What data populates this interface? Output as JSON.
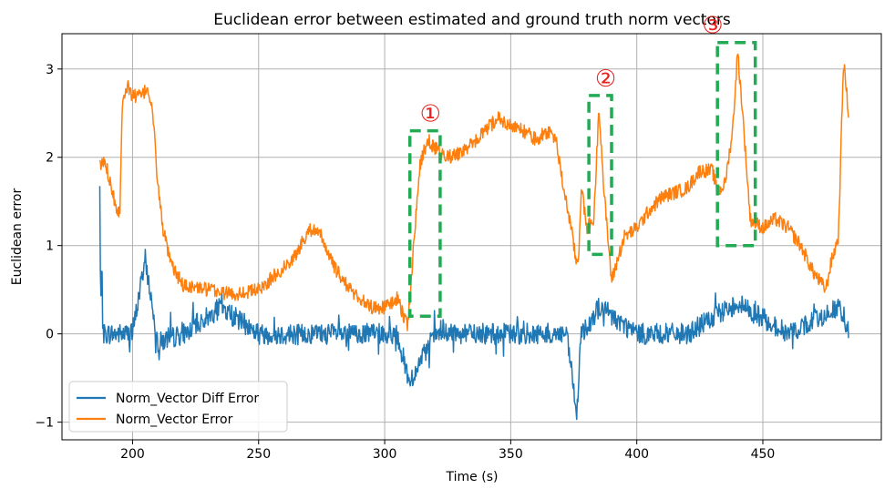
{
  "chart_data": {
    "type": "line",
    "title": "Euclidean error between estimated and ground truth norm vectors",
    "xlabel": "Time (s)",
    "ylabel": "Euclidean error",
    "xlim": [
      172,
      497
    ],
    "ylim": [
      -1.2,
      3.4
    ],
    "xticks": [
      200,
      250,
      300,
      350,
      400,
      450
    ],
    "yticks": [
      -1,
      0,
      1,
      2,
      3
    ],
    "ytick_labels": [
      "−1",
      "0",
      "1",
      "2",
      "3"
    ],
    "grid": true,
    "legend_position": "lower-left",
    "series": [
      {
        "name": "Norm_Vector Diff Error",
        "color": "#1f77b4",
        "noise_amplitude": 0.12,
        "x": [
          187,
          187.3,
          187.8,
          188.5,
          200,
          205,
          210,
          220,
          235,
          250,
          270,
          290,
          305,
          308,
          310,
          320,
          340,
          360,
          372,
          375,
          376,
          378,
          385,
          400,
          420,
          440,
          460,
          480,
          484
        ],
        "y": [
          1.65,
          0.3,
          0.7,
          0.0,
          0.0,
          0.85,
          -0.1,
          0.0,
          0.3,
          0.0,
          0.0,
          0.0,
          0.0,
          -0.35,
          -0.55,
          0.0,
          0.0,
          0.0,
          0.0,
          -0.6,
          -1.0,
          0.0,
          0.3,
          0.0,
          0.0,
          0.35,
          0.0,
          0.3,
          0.0
        ]
      },
      {
        "name": "Norm_Vector Error",
        "color": "#ff7f0e",
        "noise_amplitude": 0.08,
        "x": [
          187,
          189,
          191,
          193,
          194,
          195,
          196,
          198,
          200,
          204,
          206,
          208,
          210,
          212,
          215,
          220,
          230,
          240,
          250,
          260,
          265,
          270,
          275,
          280,
          285,
          290,
          295,
          300,
          305,
          307,
          309,
          310,
          312,
          314,
          317,
          320,
          325,
          330,
          335,
          340,
          345,
          350,
          355,
          360,
          365,
          368,
          370,
          372,
          374,
          376,
          377,
          378,
          380,
          383,
          385,
          387,
          390,
          395,
          400,
          405,
          410,
          420,
          425,
          430,
          432,
          435,
          438,
          440,
          442,
          445,
          450,
          455,
          460,
          465,
          470,
          475,
          477,
          480,
          482,
          484
        ],
        "y": [
          1.9,
          1.95,
          1.75,
          1.5,
          1.4,
          1.4,
          2.7,
          2.8,
          2.7,
          2.7,
          2.8,
          2.5,
          1.7,
          1.2,
          0.8,
          0.55,
          0.5,
          0.45,
          0.5,
          0.75,
          0.9,
          1.2,
          1.1,
          0.75,
          0.55,
          0.4,
          0.3,
          0.3,
          0.4,
          0.25,
          0.1,
          0.4,
          1.2,
          1.9,
          2.2,
          2.1,
          2.0,
          2.05,
          2.15,
          2.3,
          2.45,
          2.35,
          2.3,
          2.2,
          2.3,
          2.2,
          1.8,
          1.5,
          1.2,
          0.8,
          0.9,
          1.7,
          1.2,
          1.3,
          2.6,
          1.6,
          0.6,
          1.1,
          1.2,
          1.4,
          1.55,
          1.65,
          1.85,
          1.85,
          1.6,
          1.7,
          2.3,
          3.2,
          2.5,
          1.3,
          1.2,
          1.3,
          1.2,
          1.0,
          0.7,
          0.5,
          0.8,
          1.1,
          3.1,
          2.5
        ]
      }
    ],
    "highlight_boxes": [
      {
        "label": "①",
        "x0": 310,
        "x1": 322,
        "y0": 0.2,
        "y1": 2.3
      },
      {
        "label": "②",
        "x0": 381,
        "x1": 390,
        "y0": 0.9,
        "y1": 2.7
      },
      {
        "label": "③",
        "x0": 432,
        "x1": 447,
        "y0": 1.0,
        "y1": 3.3
      }
    ],
    "highlight_color": "#22aa55",
    "label_color": "#e8211f"
  }
}
